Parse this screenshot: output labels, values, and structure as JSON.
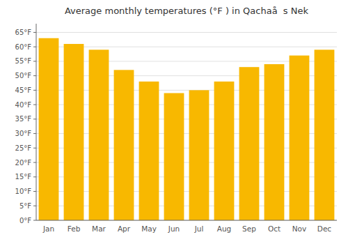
{
  "chart_data": {
    "type": "bar",
    "title": "Average monthly temperatures (°F ) in Qachaå  s Nek",
    "categories": [
      "Jan",
      "Feb",
      "Mar",
      "Apr",
      "May",
      "Jun",
      "Jul",
      "Aug",
      "Sep",
      "Oct",
      "Nov",
      "Dec"
    ],
    "values": [
      63,
      61,
      59,
      52,
      48,
      44,
      45,
      48,
      53,
      54,
      57,
      59
    ],
    "color": "#F8B800",
    "ylim": [
      0,
      68
    ],
    "yticks": [
      {
        "value": 0,
        "label": "0°F"
      },
      {
        "value": 5,
        "label": "5°F"
      },
      {
        "value": 10,
        "label": "10°F"
      },
      {
        "value": 15,
        "label": "15°F"
      },
      {
        "value": 20,
        "label": "20°F"
      },
      {
        "value": 25,
        "label": "25°F"
      },
      {
        "value": 30,
        "label": "30°F"
      },
      {
        "value": 35,
        "label": "35°F"
      },
      {
        "value": 40,
        "label": "40°F"
      },
      {
        "value": 45,
        "label": "45°F"
      },
      {
        "value": 50,
        "label": "50°F"
      },
      {
        "value": 55,
        "label": "55°F"
      },
      {
        "value": 60,
        "label": "60°F"
      },
      {
        "value": 65,
        "label": "65°F"
      }
    ],
    "grid": true
  }
}
